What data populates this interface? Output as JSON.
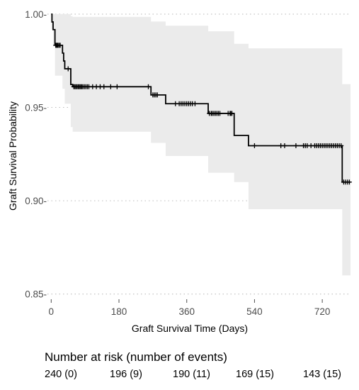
{
  "chart_data": {
    "type": "line",
    "title": "",
    "xlabel": "Graft Survival Time (Days)",
    "ylabel": "Graft Survival Probability",
    "xlim": [
      -10,
      795
    ],
    "ylim": [
      0.848,
      1.003
    ],
    "x_ticks": [
      0,
      180,
      360,
      540,
      720
    ],
    "y_ticks": [
      0.85,
      0.9,
      0.95,
      1.0
    ],
    "y_tick_labels": [
      "0.85-",
      "0.90-",
      "0.95-",
      "1.00-"
    ],
    "grid": "horizontal dotted",
    "colors": {
      "line": "#000000",
      "band": "#ebebeb",
      "grid": "#bdbdbd"
    },
    "series": [
      {
        "steps": [
          [
            0,
            1.0
          ],
          [
            2,
            0.9958
          ],
          [
            5,
            0.9917
          ],
          [
            10,
            0.9833
          ],
          [
            10,
            0.9833
          ],
          [
            30,
            0.9791
          ],
          [
            33,
            0.9749
          ],
          [
            36,
            0.9707
          ],
          [
            44,
            0.9707
          ],
          [
            52,
            0.9623
          ],
          [
            57,
            0.9611
          ],
          [
            264,
            0.9611
          ],
          [
            265,
            0.9567
          ],
          [
            303,
            0.9567
          ],
          [
            304,
            0.952
          ],
          [
            416,
            0.952
          ],
          [
            417,
            0.9468
          ],
          [
            485,
            0.9468
          ],
          [
            486,
            0.935
          ],
          [
            523,
            0.935
          ],
          [
            524,
            0.9295
          ],
          [
            772,
            0.9295
          ],
          [
            773,
            0.91
          ],
          [
            795,
            0.91
          ]
        ],
        "ci_upper": [
          [
            0,
            1.0
          ],
          [
            10,
            1.0
          ],
          [
            30,
            1.0
          ],
          [
            52,
            0.9989
          ],
          [
            57,
            0.9985
          ],
          [
            264,
            0.9985
          ],
          [
            265,
            0.996
          ],
          [
            304,
            0.9938
          ],
          [
            417,
            0.9908
          ],
          [
            486,
            0.9841
          ],
          [
            524,
            0.9817
          ],
          [
            773,
            0.9625
          ],
          [
            795,
            0.9625
          ]
        ],
        "ci_lower": [
          [
            0,
            0.9917
          ],
          [
            5,
            0.983
          ],
          [
            10,
            0.967
          ],
          [
            30,
            0.96
          ],
          [
            36,
            0.952
          ],
          [
            52,
            0.9395
          ],
          [
            57,
            0.937
          ],
          [
            264,
            0.937
          ],
          [
            265,
            0.931
          ],
          [
            304,
            0.924
          ],
          [
            417,
            0.915
          ],
          [
            486,
            0.91
          ],
          [
            524,
            0.8955
          ],
          [
            773,
            0.86
          ],
          [
            795,
            0.86
          ]
        ],
        "censor_times": [
          12,
          14,
          16,
          18,
          21,
          24,
          45,
          60,
          63,
          66,
          69,
          72,
          75,
          78,
          81,
          84,
          88,
          92,
          96,
          100,
          110,
          120,
          130,
          140,
          158,
          175,
          258,
          270,
          274,
          278,
          282,
          330,
          340,
          345,
          350,
          355,
          360,
          365,
          370,
          375,
          382,
          420,
          425,
          428,
          432,
          436,
          440,
          444,
          448,
          470,
          475,
          477,
          480,
          540,
          610,
          620,
          650,
          670,
          675,
          680,
          690,
          700,
          705,
          710,
          715,
          720,
          725,
          730,
          735,
          740,
          745,
          750,
          755,
          760,
          765,
          770,
          777,
          782,
          787,
          792
        ]
      }
    ]
  },
  "risk_table": {
    "title": "Number at risk (number of events)",
    "values": [
      "240 (0)",
      "196 (9)",
      "190 (11)",
      "169 (15)",
      "143 (15)"
    ]
  }
}
